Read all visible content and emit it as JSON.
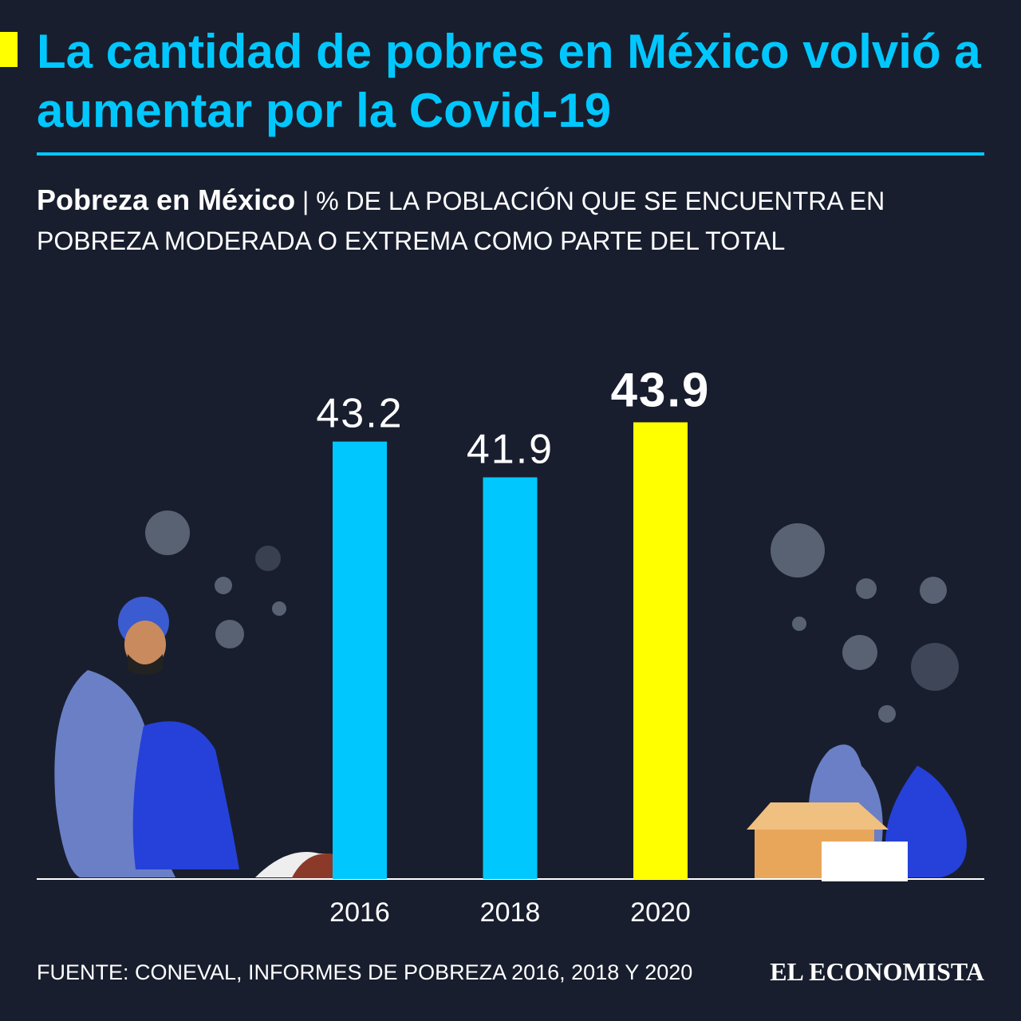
{
  "chart_data": {
    "type": "bar",
    "title": "La cantidad de pobres en México volvió a aumentar por la Covid-19",
    "subtitle_bold": "Pobreza en México",
    "subtitle": "| % DE LA POBLACIÓN QUE SE ENCUENTRA EN POBREZA MODERADA O EXTREMA COMO PARTE DEL TOTAL",
    "categories": [
      "2016",
      "2018",
      "2020"
    ],
    "values": [
      43.2,
      41.9,
      43.9
    ],
    "colors": [
      "#00c8ff",
      "#00c8ff",
      "#ffff00"
    ],
    "ylim": [
      27.3,
      44
    ],
    "source": "FUENTE: CONEVAL, INFORMES DE POBREZA 2016, 2018 Y 2020",
    "logo": "EL ECONOMISTA"
  }
}
